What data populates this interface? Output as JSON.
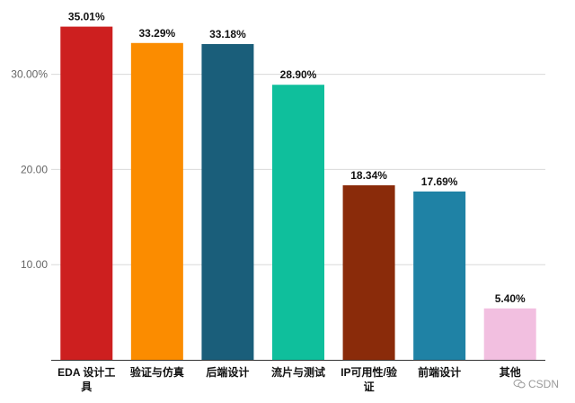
{
  "chart_data": {
    "type": "bar",
    "categories": [
      [
        "EDA 设计工",
        "具"
      ],
      [
        "验证与仿真"
      ],
      [
        "后端设计"
      ],
      [
        "流片与测试"
      ],
      [
        "IP可用性/验",
        "证"
      ],
      [
        "前端设计"
      ],
      [
        "其他"
      ]
    ],
    "values": [
      35.01,
      33.29,
      33.18,
      28.9,
      18.34,
      17.69,
      5.4
    ],
    "value_labels": [
      "35.01%",
      "33.29%",
      "33.18%",
      "28.90%",
      "18.34%",
      "17.69%",
      "5.40%"
    ],
    "colors": [
      "#cd1f1f",
      "#fb8c00",
      "#1a5e7a",
      "#0fbf9c",
      "#8a2b0a",
      "#1f82a5",
      "#f2bfe0"
    ],
    "y_ticks": [
      10,
      20,
      30
    ],
    "y_tick_labels": [
      "10.00",
      "20.00",
      "30.00%"
    ],
    "ylim": [
      0,
      36.5
    ],
    "grid": true,
    "title": "",
    "xlabel": "",
    "ylabel": ""
  },
  "watermark": "CSDN"
}
